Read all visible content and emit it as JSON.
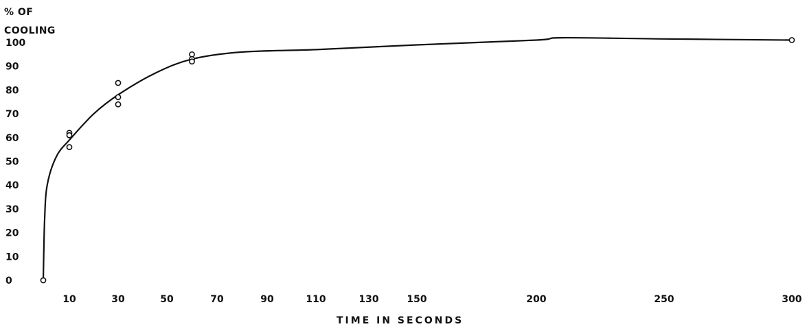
{
  "chart_data": {
    "type": "scatter",
    "title": "",
    "ylabel_lines": [
      "% OF",
      "COOLING"
    ],
    "xlabel": "TIME IN SECONDS",
    "x_ticks": [
      {
        "value": 10,
        "label": "10"
      },
      {
        "value": 30,
        "label": "30"
      },
      {
        "value": 50,
        "label": "50"
      },
      {
        "value": 70,
        "label": "70"
      },
      {
        "value": 90,
        "label": "90"
      },
      {
        "value": 110,
        "label": "110"
      },
      {
        "value": 130,
        "label": "130"
      },
      {
        "value": 150,
        "label": "150"
      },
      {
        "value": 200,
        "label": "200"
      },
      {
        "value": 250,
        "label": "250"
      },
      {
        "value": 300,
        "label": "300"
      }
    ],
    "y_ticks": [
      0,
      10,
      20,
      30,
      40,
      50,
      60,
      70,
      80,
      90,
      100
    ],
    "ylim": [
      0,
      100
    ],
    "grid": false,
    "series": [
      {
        "kind": "points",
        "marker": "open-circle",
        "points": [
          {
            "x": 0,
            "y": 0
          },
          {
            "x": 10,
            "y": 62
          },
          {
            "x": 10,
            "y": 61
          },
          {
            "x": 10,
            "y": 56
          },
          {
            "x": 30,
            "y": 83
          },
          {
            "x": 30,
            "y": 77
          },
          {
            "x": 30,
            "y": 74
          },
          {
            "x": 60,
            "y": 95
          },
          {
            "x": 60,
            "y": 93
          },
          {
            "x": 60,
            "y": 92
          },
          {
            "x": 300,
            "y": 101
          }
        ]
      },
      {
        "kind": "curve",
        "points": [
          {
            "x": 0,
            "y": 0
          },
          {
            "x": 0.5,
            "y": 25
          },
          {
            "x": 1.5,
            "y": 40
          },
          {
            "x": 5,
            "y": 52
          },
          {
            "x": 10,
            "y": 59
          },
          {
            "x": 20,
            "y": 70
          },
          {
            "x": 30,
            "y": 78
          },
          {
            "x": 45,
            "y": 87
          },
          {
            "x": 60,
            "y": 93
          },
          {
            "x": 80,
            "y": 96
          },
          {
            "x": 110,
            "y": 97
          },
          {
            "x": 150,
            "y": 99
          },
          {
            "x": 200,
            "y": 101
          },
          {
            "x": 210,
            "y": 102
          },
          {
            "x": 250,
            "y": 101.5
          },
          {
            "x": 300,
            "y": 101
          }
        ]
      }
    ]
  }
}
